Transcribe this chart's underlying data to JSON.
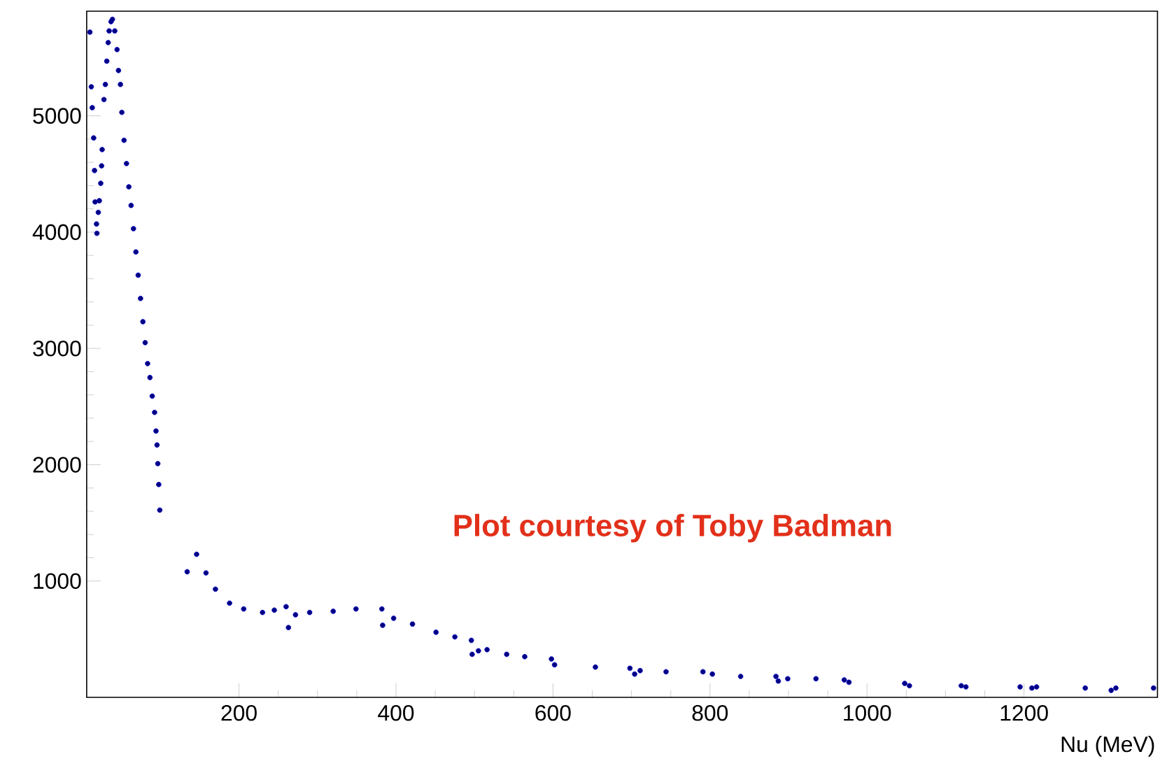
{
  "chart_data": {
    "type": "scatter",
    "xlabel": "Nu (MeV)",
    "annotations": [
      "Plot courtesy of Toby Badman"
    ],
    "color": "#000080",
    "xlim": [
      6,
      1370
    ],
    "ylim": [
      0,
      5900
    ],
    "xticks": [
      200,
      400,
      600,
      800,
      1000,
      1200
    ],
    "yticks": [
      1000,
      2000,
      3000,
      4000,
      5000
    ],
    "x": [
      10.1,
      11.9,
      13.1,
      14.9,
      16.0,
      16.7,
      18.5,
      19.0,
      20.8,
      22.1,
      23.9,
      25.0,
      25.7,
      28.0,
      29.8,
      31.6,
      33.4,
      34.6,
      37.0,
      38.8,
      41.8,
      44.7,
      46.5,
      49.0,
      50.8,
      53.6,
      56.7,
      59.7,
      62.6,
      65.6,
      68.7,
      71.6,
      74.6,
      77.6,
      80.5,
      83.6,
      86.6,
      89.5,
      92.5,
      94.3,
      95.6,
      96.6,
      97.8,
      99.1,
      134,
      146,
      158,
      170,
      188,
      206,
      230,
      245,
      260,
      263,
      272,
      290,
      320,
      349,
      382,
      383,
      397,
      421,
      451,
      475,
      496,
      497,
      505,
      516,
      541,
      564,
      598,
      602,
      654,
      698,
      704,
      711,
      744,
      791,
      803,
      839,
      884,
      887,
      899,
      935,
      971,
      977,
      1048,
      1054,
      1120,
      1126,
      1195,
      1210,
      1216,
      1278,
      1311,
      1317,
      1365
    ],
    "values": [
      5720,
      5250,
      5070,
      4810,
      4530,
      4260,
      4070,
      3990,
      4170,
      4270,
      4420,
      4570,
      4710,
      5140,
      5270,
      5470,
      5630,
      5730,
      5810,
      5830,
      5730,
      5570,
      5390,
      5270,
      5030,
      4790,
      4590,
      4390,
      4230,
      4030,
      3830,
      3630,
      3430,
      3230,
      3050,
      2870,
      2750,
      2590,
      2450,
      2290,
      2170,
      2010,
      1830,
      1610,
      1080,
      1230,
      1070,
      930,
      810,
      760,
      730,
      750,
      780,
      600,
      710,
      730,
      740,
      760,
      760,
      620,
      680,
      630,
      560,
      520,
      490,
      370,
      400,
      410,
      370,
      350,
      330,
      280,
      260,
      250,
      200,
      230,
      220,
      220,
      200,
      180,
      180,
      140,
      160,
      160,
      150,
      130,
      120,
      100,
      100,
      90,
      90,
      80,
      90,
      80,
      60,
      80,
      80
    ]
  }
}
